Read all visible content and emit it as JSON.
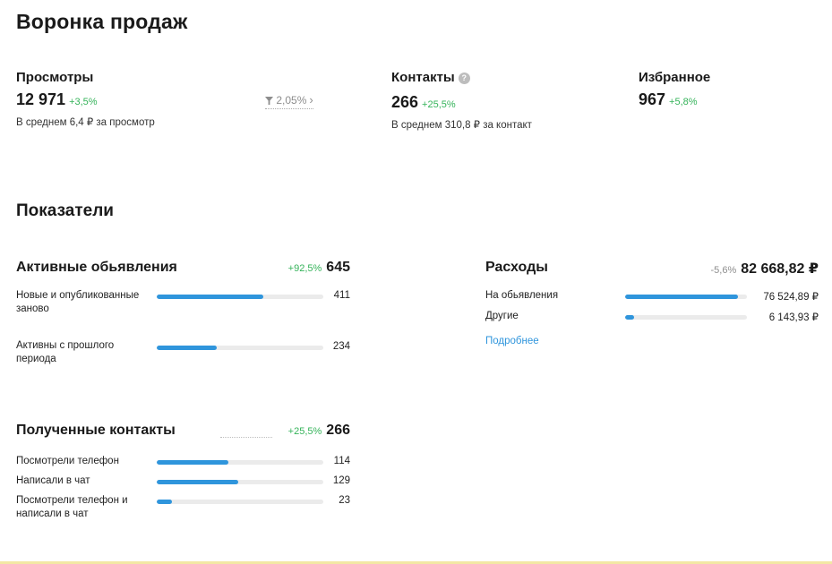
{
  "funnel": {
    "title": "Воронка продаж",
    "views": {
      "label": "Просмотры",
      "value": "12 971",
      "delta": "+3,5%",
      "sub": "В среднем 6,4 ₽ за просмотр"
    },
    "conversion": {
      "icon": "funnel-icon",
      "value": "2,05%",
      "chevron": "›"
    },
    "contacts": {
      "label": "Контакты",
      "info_icon": "info-icon",
      "info_glyph": "?",
      "value": "266",
      "delta": "+25,5%",
      "sub": "В среднем 310,8 ₽ за контакт"
    },
    "favorites": {
      "label": "Избранное",
      "value": "967",
      "delta": "+5,8%"
    }
  },
  "indicators": {
    "title": "Показатели",
    "active_ads": {
      "title": "Активные обьявления",
      "delta": "+92,5%",
      "total": "645",
      "rows": [
        {
          "label": "Новые и опубликованные заново",
          "value": "411",
          "fraction": 0.64
        },
        {
          "label": "Активны с прошлого периода",
          "value": "234",
          "fraction": 0.36
        }
      ]
    },
    "expenses": {
      "title": "Расходы",
      "delta": "-5,6%",
      "total": "82 668,82 ₽",
      "rows": [
        {
          "label": "На обьявления",
          "value": "76 524,89 ₽",
          "fraction": 0.93
        },
        {
          "label": "Другие",
          "value": "6 143,93 ₽",
          "fraction": 0.07
        }
      ],
      "link": "Подробнее"
    },
    "received_contacts": {
      "title": "Полученные контакты",
      "delta": "+25,5%",
      "total": "266",
      "rows": [
        {
          "label": "Посмотрели телефон",
          "value": "114",
          "fraction": 0.43
        },
        {
          "label": "Написали в чат",
          "value": "129",
          "fraction": 0.49
        },
        {
          "label": "Посмотрели телефон и написали в чат",
          "value": "23",
          "fraction": 0.09
        }
      ]
    }
  },
  "colors": {
    "accent": "#2f95dc",
    "positive": "#35b35a",
    "muted": "#8d8d8d",
    "track": "#ebebeb"
  }
}
